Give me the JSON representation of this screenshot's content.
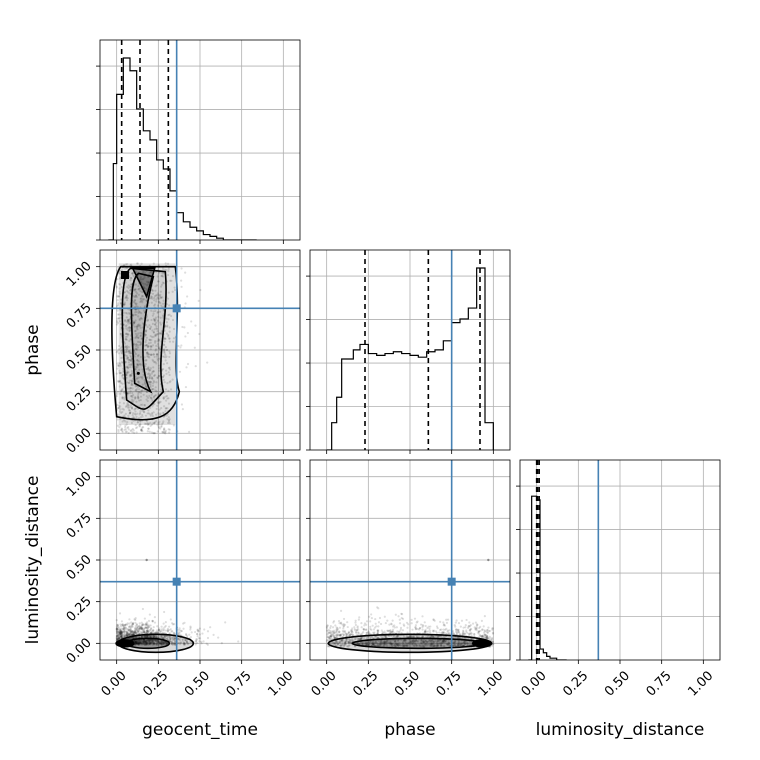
{
  "chart_data": {
    "type": "corner",
    "parameters": [
      "geocent_time",
      "phase",
      "luminosity_distance"
    ],
    "truths": {
      "geocent_time": 0.36,
      "phase": 0.75,
      "luminosity_distance": 0.37
    },
    "quantiles": {
      "geocent_time": [
        0.03,
        0.14,
        0.31
      ],
      "phase": [
        0.23,
        0.61,
        0.92
      ],
      "luminosity_distance": [
        0.0,
        0.005,
        0.015
      ]
    },
    "ticks": [
      0.0,
      0.25,
      0.5,
      0.75,
      1.0
    ],
    "tick_labels": [
      "0.00",
      "0.25",
      "0.50",
      "0.75",
      "1.00"
    ],
    "ranges": {
      "geocent_time": [
        -0.1,
        1.1
      ],
      "phase": [
        -0.1,
        1.1
      ],
      "luminosity_distance": [
        -0.1,
        1.1
      ]
    },
    "grid": true,
    "colors": {
      "truth": "#4682b4",
      "hist": "#000000",
      "grid": "#b0b0b0"
    },
    "marginals": {
      "geocent_time": {
        "bin_edges": [
          -0.05,
          -0.02,
          0.0,
          0.04,
          0.08,
          0.12,
          0.16,
          0.2,
          0.24,
          0.28,
          0.32,
          0.36,
          0.4,
          0.44,
          0.48,
          0.52,
          0.56,
          0.6,
          0.64,
          0.68,
          0.72,
          0.76,
          0.8,
          0.84
        ],
        "counts": [
          0.0,
          0.42,
          0.8,
          1.0,
          0.93,
          0.72,
          0.6,
          0.55,
          0.44,
          0.39,
          0.27,
          0.15,
          0.1,
          0.07,
          0.05,
          0.03,
          0.02,
          0.01,
          0.0,
          0.0,
          0.0,
          0.0,
          0.0
        ]
      },
      "phase": {
        "bin_edges": [
          0.0,
          0.03,
          0.06,
          0.09,
          0.12,
          0.16,
          0.2,
          0.25,
          0.3,
          0.35,
          0.4,
          0.45,
          0.5,
          0.55,
          0.6,
          0.65,
          0.7,
          0.75,
          0.8,
          0.85,
          0.9,
          0.95,
          1.0
        ],
        "counts": [
          0.0,
          0.15,
          0.29,
          0.5,
          0.5,
          0.55,
          0.58,
          0.53,
          0.52,
          0.53,
          0.54,
          0.53,
          0.52,
          0.51,
          0.54,
          0.55,
          0.6,
          0.7,
          0.72,
          0.78,
          1.0,
          0.15
        ]
      },
      "luminosity_distance": {
        "bin_edges": [
          -0.05,
          -0.03,
          0.0,
          0.02,
          0.04,
          0.06,
          0.08,
          0.1,
          0.12,
          0.14,
          0.16,
          0.18
        ],
        "counts": [
          0.0,
          0.9,
          0.88,
          0.06,
          0.04,
          0.02,
          0.01,
          0.01,
          0.0,
          0.0,
          0.0
        ]
      }
    },
    "density_2d": [
      {
        "x": "geocent_time",
        "y": "phase",
        "mode": [
          0.05,
          0.95
        ],
        "point_spread": [
          0.0,
          0.6,
          0.0,
          1.05
        ]
      },
      {
        "x": "geocent_time",
        "y": "luminosity_distance",
        "mode": [
          0.05,
          0.0
        ],
        "point_spread": [
          0.0,
          0.75,
          -0.03,
          0.3
        ]
      },
      {
        "x": "phase",
        "y": "luminosity_distance",
        "mode": [
          0.93,
          0.0
        ],
        "point_spread": [
          0.0,
          1.0,
          -0.03,
          0.25
        ]
      }
    ],
    "xlabels": [
      "geocent_time",
      "phase",
      "luminosity_distance"
    ],
    "ylabels": [
      "",
      "phase",
      "luminosity_distance"
    ]
  }
}
